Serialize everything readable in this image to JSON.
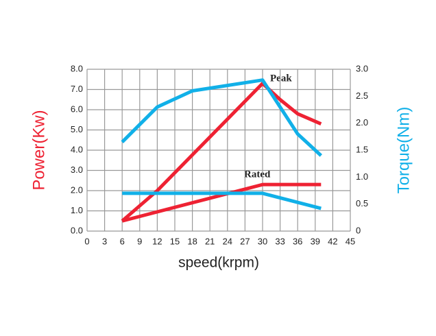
{
  "chart_data": {
    "type": "line",
    "x_label": "speed(krpm)",
    "y_label": "Power(Kw)",
    "y2_label": "Torque(Nm)",
    "annotations": [
      "Peak",
      "Rated"
    ],
    "xlim": [
      0,
      45
    ],
    "xticks": [
      0,
      3,
      6,
      9,
      12,
      15,
      18,
      21,
      24,
      27,
      30,
      33,
      36,
      39,
      42,
      45
    ],
    "ylim": [
      0,
      8
    ],
    "yticks": [
      {
        "value": 0,
        "label": "0.0"
      },
      {
        "value": 1,
        "label": "1.0"
      },
      {
        "value": 2,
        "label": "2.0"
      },
      {
        "value": 3,
        "label": "3.0"
      },
      {
        "value": 4,
        "label": "4.0"
      },
      {
        "value": 5,
        "label": "5.0"
      },
      {
        "value": 6,
        "label": "6.0"
      },
      {
        "value": 7,
        "label": "7.0"
      },
      {
        "value": 8,
        "label": "8.0"
      }
    ],
    "y2lim": [
      0,
      3
    ],
    "y2ticks": [
      0,
      0.5,
      {
        "value": 1,
        "label": "1.0"
      },
      1.5,
      {
        "value": 2,
        "label": "2.0"
      },
      2.5,
      {
        "value": 3,
        "label": "3.0"
      }
    ],
    "grid": true,
    "y_color": "#ee2233",
    "y2_color": "#11b0e8",
    "series": [
      {
        "color": "#ee2233",
        "x": [
          6,
          12,
          30,
          33,
          36,
          40
        ],
        "values": [
          0.5,
          2.0,
          7.3,
          6.5,
          5.8,
          5.3
        ]
      },
      {
        "color": "#ee2233",
        "x": [
          6,
          30,
          40
        ],
        "values": [
          0.5,
          2.3,
          2.3
        ]
      },
      {
        "color": "#11b0e8",
        "axis": "y2",
        "x": [
          6,
          12,
          18,
          30,
          36,
          40
        ],
        "values": [
          1.65,
          2.3,
          2.6,
          2.8,
          1.8,
          1.4
        ]
      },
      {
        "color": "#11b0e8",
        "axis": "y2",
        "x": [
          6,
          30,
          40
        ],
        "values": [
          0.7,
          0.7,
          0.42
        ]
      }
    ]
  }
}
